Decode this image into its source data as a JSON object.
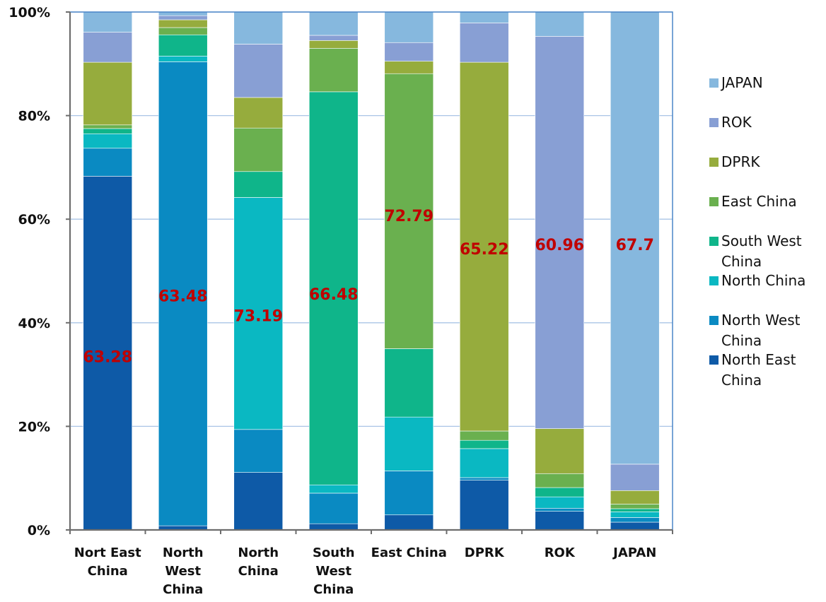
{
  "chart_data": {
    "type": "bar",
    "stacked": true,
    "normalized": true,
    "categories": [
      [
        "Nort East",
        "China"
      ],
      [
        "North",
        "West",
        "China"
      ],
      [
        "North",
        "China"
      ],
      [
        "South",
        "West",
        "China"
      ],
      [
        "East China"
      ],
      [
        "DPRK"
      ],
      [
        "ROK"
      ],
      [
        "JAPAN"
      ]
    ],
    "ylim": [
      0,
      100
    ],
    "yticks": [
      0,
      20,
      40,
      60,
      80,
      100
    ],
    "ytick_labels": [
      "0%",
      "20%",
      "40%",
      "60%",
      "80%",
      "100%"
    ],
    "grid": true,
    "legend_position": "right",
    "series": [
      {
        "name": "North East China",
        "color": "#0e5aa7",
        "values": [
          68.3,
          0.8,
          11.1,
          1.2,
          2.9,
          9.6,
          3.6,
          1.5
        ]
      },
      {
        "name": "North West China",
        "color": "#0a8ac2",
        "values": [
          5.4,
          89.6,
          8.3,
          5.9,
          8.5,
          0.5,
          0.6,
          0.9
        ]
      },
      {
        "name": "North China",
        "color": "#0ab8c2",
        "values": [
          2.8,
          1.1,
          44.8,
          1.6,
          10.4,
          5.6,
          2.2,
          1.1
        ]
      },
      {
        "name": "South West China",
        "color": "#0fb58a",
        "values": [
          1.0,
          4.1,
          5.0,
          75.9,
          13.2,
          1.6,
          1.8,
          0.6
        ]
      },
      {
        "name": "East China",
        "color": "#6ab04f",
        "values": [
          0.7,
          1.4,
          8.4,
          8.4,
          53.1,
          1.8,
          2.7,
          0.9
        ]
      },
      {
        "name": "DPRK",
        "color": "#96ac3d",
        "values": [
          12.1,
          1.5,
          5.9,
          1.5,
          2.4,
          71.2,
          8.7,
          2.6
        ]
      },
      {
        "name": "ROK",
        "color": "#889fd4",
        "values": [
          5.8,
          0.8,
          10.3,
          1.0,
          3.6,
          7.6,
          75.9,
          5.1
        ]
      },
      {
        "name": "JAPAN",
        "color": "#86b8de",
        "values": [
          3.9,
          0.7,
          6.2,
          4.5,
          5.9,
          2.1,
          4.7,
          87.3
        ]
      }
    ],
    "data_labels": [
      {
        "category_index": 0,
        "text": "63.28",
        "y": 33.5
      },
      {
        "category_index": 1,
        "text": "63.48",
        "y": 45.2
      },
      {
        "category_index": 2,
        "text": "73.19",
        "y": 41.4
      },
      {
        "category_index": 3,
        "text": "66.48",
        "y": 45.6
      },
      {
        "category_index": 4,
        "text": "72.79",
        "y": 60.7
      },
      {
        "category_index": 5,
        "text": "65.22",
        "y": 54.3
      },
      {
        "category_index": 6,
        "text": "60.96",
        "y": 55.1
      },
      {
        "category_index": 7,
        "text": "67.7",
        "y": 55.1
      }
    ],
    "legend_entries": [
      [
        "JAPAN"
      ],
      [
        "ROK"
      ],
      [
        "DPRK"
      ],
      [
        "East China"
      ],
      [
        "South West",
        "China"
      ],
      [
        "North China"
      ],
      [
        "North West",
        "China"
      ],
      [
        "North East",
        "China"
      ]
    ]
  }
}
